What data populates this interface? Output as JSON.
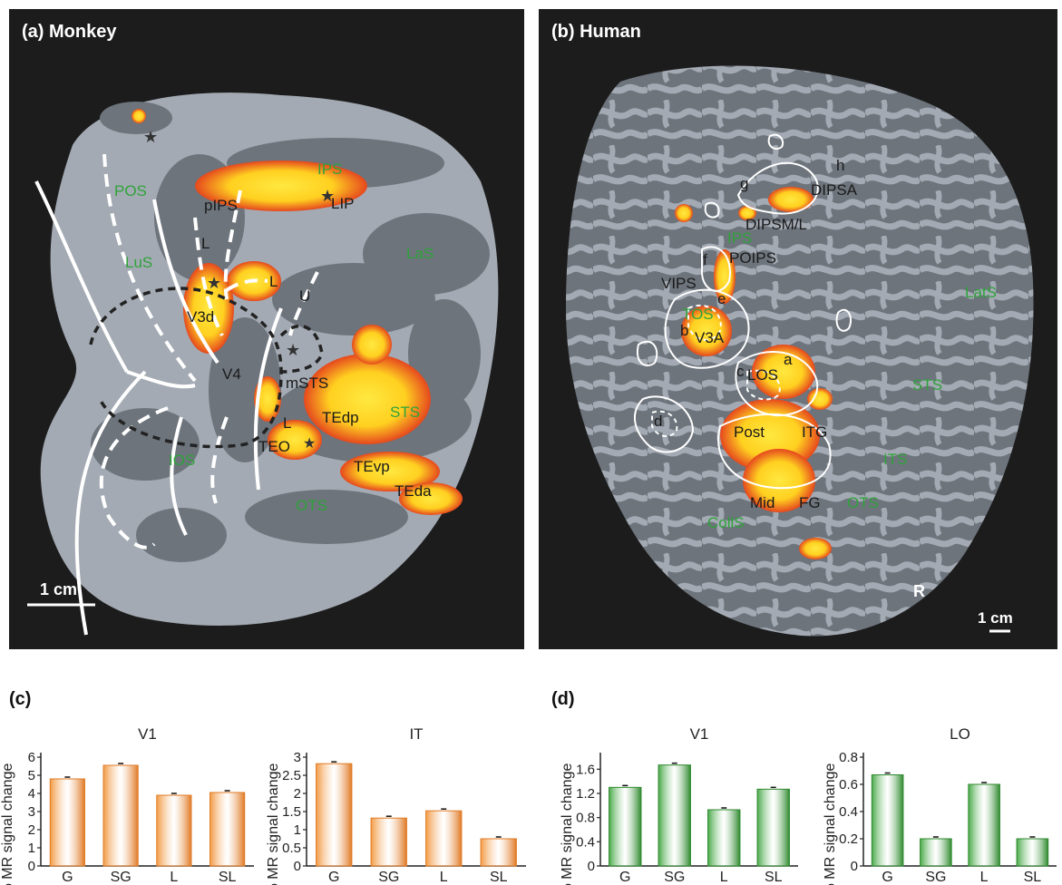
{
  "panels": {
    "a": {
      "label": "(a)  Monkey",
      "scale_bar": "1 cm",
      "sulcus_labels": [
        "IPS",
        "POS",
        "LaS",
        "LuS",
        "STS",
        "IOS",
        "OTS"
      ],
      "area_labels": [
        "pIPS",
        "LIP",
        "L",
        "L",
        "U",
        "V3d",
        "V4",
        "mSTS",
        "TEdp",
        "L",
        "TEO",
        "TEvp",
        "TEda"
      ]
    },
    "b": {
      "label": "(b)  Human",
      "scale_bar": "1 cm",
      "hemisphere": "R",
      "sulcus_labels": [
        "IPS",
        "LatS",
        "TOS",
        "STS",
        "ITS",
        "OTS",
        "CollS"
      ],
      "area_labels": [
        "h",
        "g",
        "DIPSA",
        "DIPSM/L",
        "f",
        "POIPS",
        "VIPS",
        "e",
        "b",
        "V3A",
        "a",
        "c",
        "LOS",
        "d",
        "Post",
        "ITG",
        "Mid",
        "FG"
      ]
    },
    "c": {
      "label": "(c)"
    },
    "d": {
      "label": "(d)"
    }
  },
  "colors": {
    "monkey_bars": "#f29b45",
    "human_bars": "#4aaa4a",
    "activation_core": "#ffe840",
    "activation_edge": "#e5481e",
    "sulcus_text": "#2fa33a"
  },
  "chart_data": [
    {
      "type": "bar",
      "title": "V1",
      "ylabel": "% MR signal change",
      "categories": [
        "G",
        "SG",
        "L",
        "SL"
      ],
      "values": [
        4.8,
        5.55,
        3.9,
        4.05
      ],
      "ylim": [
        0,
        6
      ],
      "yticks": [
        "0",
        "1",
        "2",
        "3",
        "4",
        "5",
        "6"
      ],
      "tickvals": [
        0,
        1,
        2,
        3,
        4,
        5,
        6
      ]
    },
    {
      "type": "bar",
      "title": "IT",
      "ylabel": "% MR signal change",
      "categories": [
        "G",
        "SG",
        "L",
        "SL"
      ],
      "values": [
        2.82,
        1.32,
        1.52,
        0.75
      ],
      "ylim": [
        0,
        3
      ],
      "yticks": [
        "0",
        "0.5",
        "1",
        "1.5",
        "2",
        "2.5",
        "3"
      ],
      "tickvals": [
        0,
        0.5,
        1,
        1.5,
        2,
        2.5,
        3
      ]
    },
    {
      "type": "bar",
      "title": "V1",
      "ylabel": "% MR signal change",
      "categories": [
        "G",
        "SG",
        "L",
        "SL"
      ],
      "values": [
        1.3,
        1.67,
        0.93,
        1.27
      ],
      "ylim": [
        0,
        1.8
      ],
      "yticks": [
        "0",
        "0.4",
        "0.8",
        "1.2",
        "1.6"
      ],
      "tickvals": [
        0,
        0.4,
        0.8,
        1.2,
        1.6
      ]
    },
    {
      "type": "bar",
      "title": "LO",
      "ylabel": "% MR signal change",
      "categories": [
        "G",
        "SG",
        "L",
        "SL"
      ],
      "values": [
        0.67,
        0.2,
        0.6,
        0.2
      ],
      "ylim": [
        0,
        0.8
      ],
      "yticks": [
        "0",
        "0.2",
        "0.4",
        "0.6",
        "0.8"
      ],
      "tickvals": [
        0,
        0.2,
        0.4,
        0.6,
        0.8
      ]
    }
  ]
}
